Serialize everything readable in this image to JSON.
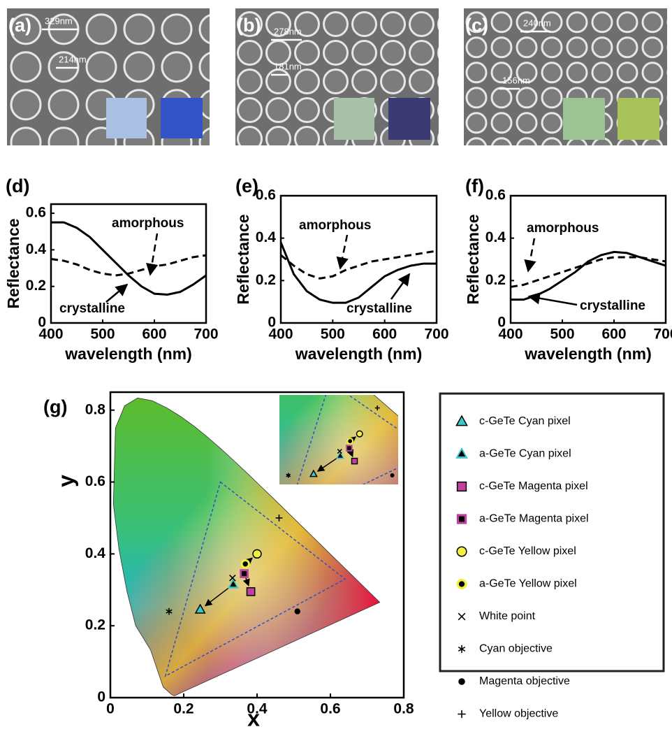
{
  "images": [
    {
      "label": "(a)",
      "scale_bars": [
        "329nm",
        "214nm"
      ],
      "swatches": [
        "#a9c0e2",
        "#3254c6"
      ]
    },
    {
      "label": "(b)",
      "scale_bars": [
        "278nm",
        "181nm"
      ],
      "swatches": [
        "#a8c0a8",
        "#3c3a72"
      ]
    },
    {
      "label": "(c)",
      "scale_bars": [
        "240nm",
        "156nm"
      ],
      "swatches": [
        "#9cc394",
        "#a9c25a"
      ]
    }
  ],
  "chart_data": [
    {
      "type": "line",
      "panel_label": "(d)",
      "x_label": "wavelength (nm)",
      "y_label": "Reflectance",
      "x": [
        400,
        425,
        450,
        475,
        500,
        525,
        550,
        575,
        600,
        625,
        650,
        675,
        700
      ],
      "xlim": [
        400,
        700
      ],
      "xticks": [
        400,
        500,
        600,
        700
      ],
      "ylim": [
        0,
        0.65
      ],
      "yticks": [
        0,
        0.2,
        0.4,
        0.6
      ],
      "series": [
        {
          "name": "amorphous",
          "color": "#000000",
          "line_style": "dashed",
          "values": [
            0.35,
            0.34,
            0.32,
            0.29,
            0.27,
            0.26,
            0.27,
            0.29,
            0.31,
            0.32,
            0.34,
            0.36,
            0.37
          ]
        },
        {
          "name": "crystalline",
          "color": "#000000",
          "line_style": "solid",
          "values": [
            0.55,
            0.55,
            0.52,
            0.47,
            0.4,
            0.33,
            0.26,
            0.2,
            0.16,
            0.155,
            0.17,
            0.21,
            0.26
          ]
        }
      ]
    },
    {
      "type": "line",
      "panel_label": "(e)",
      "x_label": "wavelength (nm)",
      "y_label": "Reflectance",
      "x": [
        400,
        425,
        450,
        475,
        500,
        525,
        550,
        575,
        600,
        625,
        650,
        675,
        700
      ],
      "xlim": [
        400,
        700
      ],
      "xticks": [
        400,
        500,
        600,
        700
      ],
      "ylim": [
        0,
        0.6
      ],
      "yticks": [
        0,
        0.2,
        0.4,
        0.6
      ],
      "series": [
        {
          "name": "amorphous",
          "color": "#000000",
          "line_style": "dashed",
          "values": [
            0.32,
            0.27,
            0.23,
            0.21,
            0.22,
            0.25,
            0.27,
            0.29,
            0.3,
            0.31,
            0.32,
            0.33,
            0.34
          ]
        },
        {
          "name": "crystalline",
          "color": "#000000",
          "line_style": "solid",
          "values": [
            0.38,
            0.23,
            0.15,
            0.11,
            0.095,
            0.095,
            0.12,
            0.17,
            0.22,
            0.25,
            0.27,
            0.28,
            0.28
          ]
        }
      ]
    },
    {
      "type": "line",
      "panel_label": "(f)",
      "x_label": "wavelength (nm)",
      "y_label": "Reflectance",
      "x": [
        400,
        425,
        450,
        475,
        500,
        525,
        550,
        575,
        600,
        625,
        650,
        675,
        700
      ],
      "xlim": [
        400,
        700
      ],
      "xticks": [
        400,
        500,
        600,
        700
      ],
      "ylim": [
        0,
        0.6
      ],
      "yticks": [
        0,
        0.2,
        0.4,
        0.6
      ],
      "series": [
        {
          "name": "amorphous",
          "color": "#000000",
          "line_style": "dashed",
          "values": [
            0.17,
            0.18,
            0.2,
            0.22,
            0.24,
            0.26,
            0.28,
            0.3,
            0.31,
            0.31,
            0.31,
            0.3,
            0.29
          ]
        },
        {
          "name": "crystalline",
          "color": "#000000",
          "line_style": "solid",
          "values": [
            0.11,
            0.11,
            0.13,
            0.16,
            0.2,
            0.24,
            0.29,
            0.32,
            0.335,
            0.33,
            0.31,
            0.29,
            0.27
          ]
        }
      ]
    },
    {
      "type": "scatter",
      "panel_label": "(g)",
      "x_label": "x",
      "y_label": "y",
      "xlim": [
        0,
        0.8
      ],
      "xticks": [
        0,
        0.2,
        0.4,
        0.6,
        0.8
      ],
      "ylim": [
        0,
        0.85
      ],
      "yticks": [
        0,
        0.2,
        0.4,
        0.6,
        0.8
      ],
      "inset_xlim": [
        0.13,
        0.53
      ],
      "inset_ylim": [
        0.205,
        0.55
      ],
      "spectral_locus": {
        "x": [
          0.1741,
          0.1666,
          0.144,
          0.1096,
          0.0687,
          0.0454,
          0.0235,
          0.0082,
          0.0139,
          0.0389,
          0.0743,
          0.1142,
          0.1547,
          0.1929,
          0.2296,
          0.2658,
          0.3016,
          0.3373,
          0.3731,
          0.4087,
          0.4441,
          0.4788,
          0.5125,
          0.5448,
          0.5752,
          0.6029,
          0.627,
          0.6482,
          0.6658,
          0.6801,
          0.6915,
          0.7006,
          0.7347
        ],
        "y": [
          0.005,
          0.0089,
          0.0297,
          0.1327,
          0.2007,
          0.295,
          0.4127,
          0.5384,
          0.7502,
          0.812,
          0.8338,
          0.8262,
          0.8059,
          0.7816,
          0.7543,
          0.7243,
          0.6923,
          0.6589,
          0.6245,
          0.5896,
          0.5547,
          0.5202,
          0.4866,
          0.4544,
          0.4242,
          0.3965,
          0.3725,
          0.3514,
          0.334,
          0.3197,
          0.3083,
          0.2993,
          0.2653
        ]
      },
      "gamut": {
        "x": [
          0.3,
          0.64,
          0.15
        ],
        "y": [
          0.6,
          0.33,
          0.06
        ],
        "color": "#3050c0"
      },
      "series": [
        {
          "name": "c-GeTe Cyan pixel",
          "marker": "triangle",
          "color": "#3cc8c8",
          "edge": "#000000",
          "x": [
            0.245
          ],
          "y": [
            0.245
          ]
        },
        {
          "name": "a-GeTe Cyan pixel",
          "marker": "triangle",
          "color": "#3cc8c8",
          "edge": "#3cc8c8",
          "core": "#000000",
          "x": [
            0.335
          ],
          "y": [
            0.315
          ]
        },
        {
          "name": "c-GeTe Magenta pixel",
          "marker": "square",
          "color": "#c040a0",
          "edge": "#000000",
          "x": [
            0.383
          ],
          "y": [
            0.295
          ]
        },
        {
          "name": "a-GeTe Magenta pixel",
          "marker": "square",
          "color": "#c040a0",
          "edge": "#c040a0",
          "core": "#000000",
          "x": [
            0.365
          ],
          "y": [
            0.345
          ]
        },
        {
          "name": "c-GeTe Yellow pixel",
          "marker": "circle",
          "color": "#f0f040",
          "edge": "#000000",
          "x": [
            0.4
          ],
          "y": [
            0.4
          ]
        },
        {
          "name": "a-GeTe Yellow pixel",
          "marker": "circle",
          "color": "#f0f040",
          "edge": "#f0f040",
          "core": "#000000",
          "x": [
            0.368
          ],
          "y": [
            0.372
          ]
        },
        {
          "name": "White point",
          "marker": "x",
          "color": "#000000",
          "x": [
            0.333
          ],
          "y": [
            0.333
          ]
        },
        {
          "name": "Cyan objective",
          "marker": "asterisk",
          "color": "#000000",
          "x": [
            0.16
          ],
          "y": [
            0.24
          ]
        },
        {
          "name": "Magenta objective",
          "marker": "dot",
          "color": "#000000",
          "x": [
            0.51
          ],
          "y": [
            0.24
          ]
        },
        {
          "name": "Yellow objective",
          "marker": "plus",
          "color": "#000000",
          "x": [
            0.46
          ],
          "y": [
            0.5
          ]
        }
      ]
    }
  ]
}
